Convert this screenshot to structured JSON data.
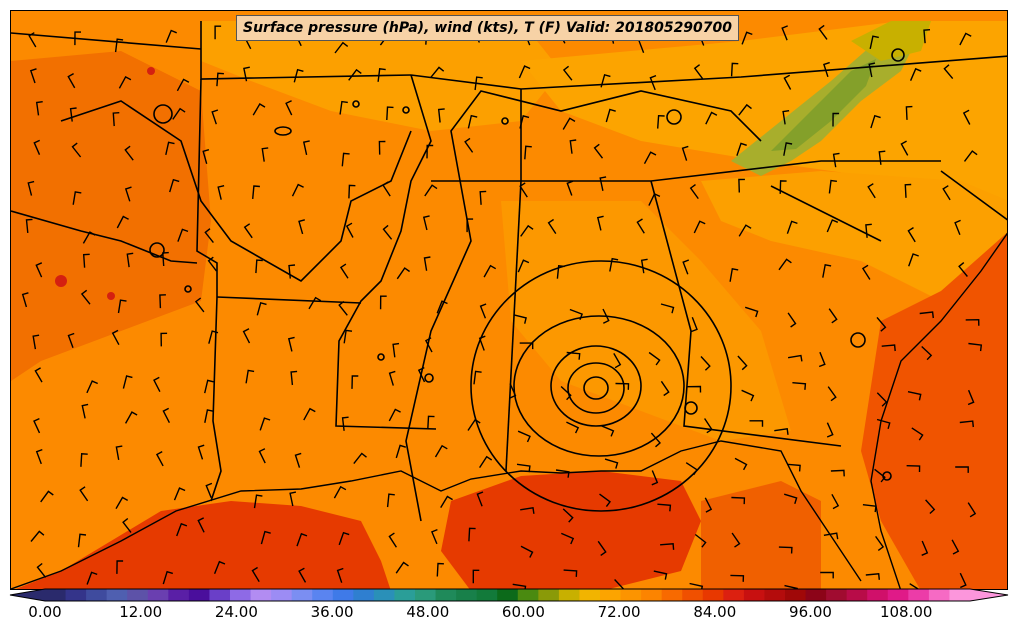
{
  "title": "Surface pressure (hPa), wind (kts), T (F) Valid: 201805290700",
  "colorbar": {
    "min": 0,
    "max": 116,
    "tick_labels": [
      "0.00",
      "12.00",
      "24.00",
      "36.00",
      "48.00",
      "60.00",
      "72.00",
      "84.00",
      "96.00",
      "108.00"
    ],
    "colors": [
      "#2a2a6c",
      "#34348a",
      "#3f4b9e",
      "#4f5fb0",
      "#5d52a8",
      "#6a3fb0",
      "#5a1fa6",
      "#4a0e9c",
      "#6a3fc8",
      "#8e6ae6",
      "#b28cf2",
      "#9c8cf4",
      "#7b8ef2",
      "#5a84f0",
      "#3f7ae8",
      "#2f7fd0",
      "#2a90b8",
      "#2a9e98",
      "#2a9a7a",
      "#1f8a5a",
      "#18804a",
      "#127a3a",
      "#0c6a1a",
      "#4a8a10",
      "#8a9a08",
      "#c8b000",
      "#f2b400",
      "#fca400",
      "#fc9400",
      "#fc8400",
      "#f86a00",
      "#f05000",
      "#e83800",
      "#dc2010",
      "#c81010",
      "#b40c0c",
      "#a00808",
      "#8c0418",
      "#a00c30",
      "#b80c48",
      "#d0106a",
      "#e01a88",
      "#ec3ca8",
      "#f66ac4",
      "#fc96dc"
    ]
  },
  "legend_colors": {
    "temp_70s": "#fca400",
    "temp_low70s": "#fcb600",
    "temp_mid70s": "#fc9400",
    "temp_high70s": "#fc8400",
    "temp_80s": "#e83800",
    "mountain_cool": "#a6b028",
    "mountain_cooler": "#88a02a",
    "border": "#000000"
  }
}
